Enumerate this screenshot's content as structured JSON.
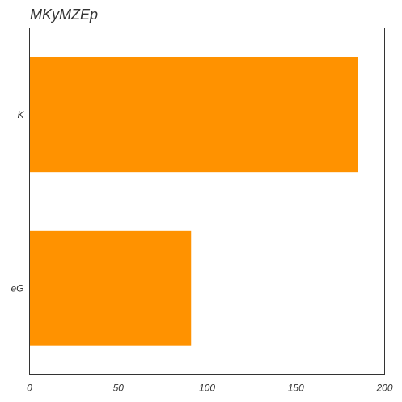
{
  "chart_data": {
    "type": "bar",
    "orientation": "horizontal",
    "title": "MKyMZEp",
    "categories": [
      "K",
      "eG"
    ],
    "values": [
      185,
      91
    ],
    "xlabel": "",
    "ylabel": "",
    "xlim": [
      0,
      200
    ],
    "xticks": [
      0,
      50,
      100,
      150,
      200
    ],
    "grid": false,
    "bar_color": "#ff9200"
  }
}
